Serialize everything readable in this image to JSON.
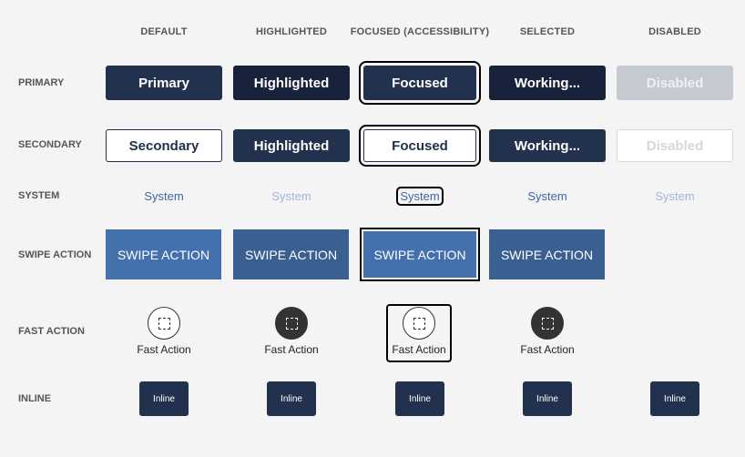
{
  "columns": [
    "DEFAULT",
    "HIGHLIGHTED",
    "FOCUSED (ACCESSIBILITY)",
    "SELECTED",
    "DISABLED"
  ],
  "rows": [
    "PRIMARY",
    "SECONDARY",
    "SYSTEM",
    "SWIPE ACTION",
    "FAST ACTION",
    "INLINE"
  ],
  "primary": [
    "Primary",
    "Highlighted",
    "Focused",
    "Working...",
    "Disabled"
  ],
  "secondary": [
    "Secondary",
    "Highlighted",
    "Focused",
    "Working...",
    "Disabled"
  ],
  "system": [
    "System",
    "System",
    "System",
    "System",
    "System"
  ],
  "swipe": [
    "SWIPE ACTION",
    "SWIPE ACTION",
    "SWIPE ACTION",
    "SWIPE ACTION"
  ],
  "fast": [
    "Fast Action",
    "Fast Action",
    "Fast Action",
    "Fast Action"
  ],
  "inline": [
    "Inline",
    "Inline",
    "Inline",
    "Inline",
    "Inline"
  ],
  "colors": {
    "navy": "#22314d",
    "navy_dark": "#18223a",
    "link": "#3e67a6",
    "swipe": "#4470ad",
    "swipe_dark": "#3a6092",
    "disabled": "#c5c9d0"
  }
}
